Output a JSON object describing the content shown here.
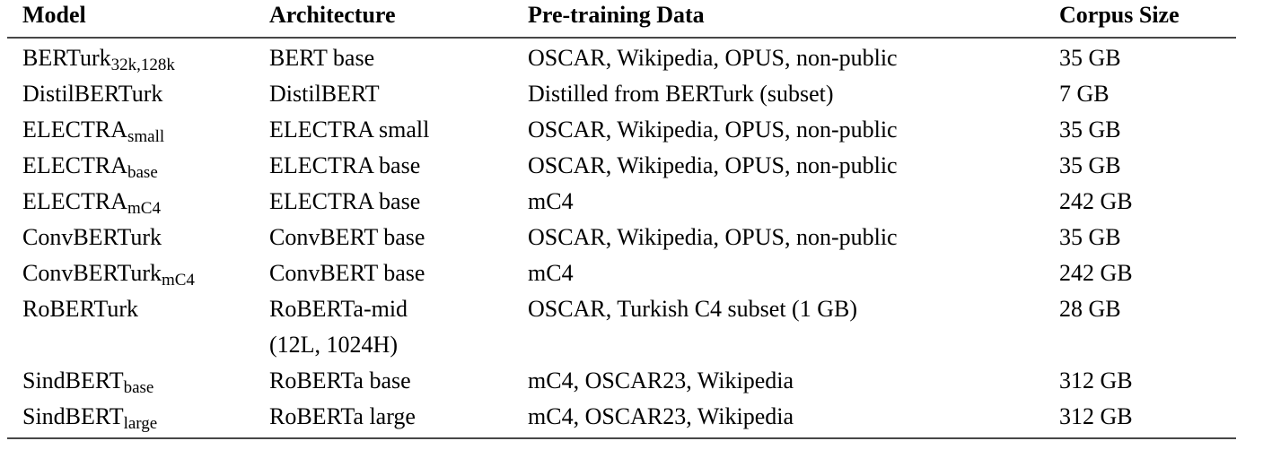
{
  "table": {
    "headers": [
      "Model",
      "Architecture",
      "Pre-training Data",
      "Corpus Size"
    ],
    "rows": [
      {
        "model": "BERTurk",
        "model_sub": "32k,128k",
        "architecture": "BERT base",
        "pretraining_data": "OSCAR, Wikipedia, OPUS, non-public",
        "corpus_size": "35 GB"
      },
      {
        "model": "DistilBERTurk",
        "model_sub": "",
        "architecture": "DistilBERT",
        "pretraining_data": "Distilled from BERTurk (subset)",
        "corpus_size": "7 GB"
      },
      {
        "model": "ELECTRA",
        "model_sub": "small",
        "architecture": "ELECTRA small",
        "pretraining_data": "OSCAR, Wikipedia, OPUS, non-public",
        "corpus_size": "35 GB"
      },
      {
        "model": "ELECTRA",
        "model_sub": "base",
        "architecture": "ELECTRA base",
        "pretraining_data": "OSCAR, Wikipedia, OPUS, non-public",
        "corpus_size": "35 GB"
      },
      {
        "model": "ELECTRA",
        "model_sub": "mC4",
        "architecture": "ELECTRA base",
        "pretraining_data": "mC4",
        "corpus_size": "242 GB"
      },
      {
        "model": "ConvBERTurk",
        "model_sub": "",
        "architecture": "ConvBERT base",
        "pretraining_data": "OSCAR, Wikipedia, OPUS, non-public",
        "corpus_size": "35 GB"
      },
      {
        "model": "ConvBERTurk",
        "model_sub": "mC4",
        "architecture": "ConvBERT base",
        "pretraining_data": "mC4",
        "corpus_size": "242 GB"
      },
      {
        "model": "RoBERTurk",
        "model_sub": "",
        "architecture": "RoBERTa-mid",
        "architecture_line2": "(12L, 1024H)",
        "pretraining_data": "OSCAR, Turkish C4 subset (1 GB)",
        "corpus_size": "28 GB"
      },
      {
        "model": "SindBERT",
        "model_sub": "base",
        "architecture": "RoBERTa base",
        "pretraining_data": "mC4, OSCAR23, Wikipedia",
        "corpus_size": "312 GB"
      },
      {
        "model": "SindBERT",
        "model_sub": "large",
        "architecture": "RoBERTa large",
        "pretraining_data": "mC4, OSCAR23, Wikipedia",
        "corpus_size": "312 GB"
      }
    ],
    "colors": {
      "text": "#000000",
      "rule": "#474747",
      "background": "#ffffff"
    }
  }
}
